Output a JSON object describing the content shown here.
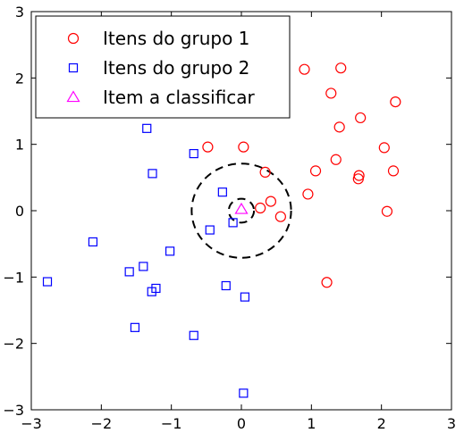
{
  "chart_data": {
    "type": "scatter",
    "title": "",
    "xlabel": "",
    "ylabel": "",
    "xlim": [
      -3,
      3
    ],
    "ylim": [
      -3,
      3
    ],
    "xticks": [
      -3,
      -2,
      -1,
      0,
      1,
      2,
      3
    ],
    "yticks": [
      -3,
      -2,
      -1,
      0,
      1,
      2,
      3
    ],
    "grid": false,
    "legend_position": "top-left",
    "series": [
      {
        "name": "Itens do grupo 1",
        "marker": "circle",
        "color": "#ff0000",
        "points": [
          [
            0.9,
            2.13
          ],
          [
            1.42,
            2.15
          ],
          [
            1.28,
            1.77
          ],
          [
            2.2,
            1.64
          ],
          [
            1.7,
            1.4
          ],
          [
            1.4,
            1.26
          ],
          [
            2.04,
            0.95
          ],
          [
            -0.48,
            0.96
          ],
          [
            0.03,
            0.96
          ],
          [
            1.35,
            0.77
          ],
          [
            0.34,
            0.58
          ],
          [
            1.06,
            0.6
          ],
          [
            2.17,
            0.6
          ],
          [
            1.68,
            0.53
          ],
          [
            1.67,
            0.48
          ],
          [
            0.95,
            0.25
          ],
          [
            0.42,
            0.14
          ],
          [
            0.27,
            0.04
          ],
          [
            0.56,
            -0.09
          ],
          [
            2.08,
            -0.01
          ],
          [
            1.22,
            -1.08
          ]
        ]
      },
      {
        "name": "Itens do grupo 2",
        "marker": "square",
        "color": "#0000ff",
        "points": [
          [
            -1.35,
            1.24
          ],
          [
            -1.27,
            0.56
          ],
          [
            -0.68,
            0.86
          ],
          [
            -0.27,
            0.28
          ],
          [
            -0.12,
            -0.18
          ],
          [
            -0.45,
            -0.29
          ],
          [
            -2.12,
            -0.47
          ],
          [
            -1.02,
            -0.61
          ],
          [
            -1.4,
            -0.84
          ],
          [
            -1.6,
            -0.92
          ],
          [
            -2.77,
            -1.07
          ],
          [
            -1.22,
            -1.17
          ],
          [
            -1.28,
            -1.22
          ],
          [
            -0.22,
            -1.13
          ],
          [
            0.05,
            -1.3
          ],
          [
            -1.52,
            -1.76
          ],
          [
            -0.68,
            -1.88
          ],
          [
            0.03,
            -2.75
          ]
        ]
      },
      {
        "name": "Item a classificar",
        "marker": "triangle",
        "color": "#ff00ff",
        "points": [
          [
            0.0,
            0.02
          ]
        ]
      }
    ],
    "circles": [
      {
        "cx": 0.0,
        "cy": 0.0,
        "r": 0.18,
        "style": "dashed",
        "color": "#000000"
      },
      {
        "cx": 0.0,
        "cy": 0.0,
        "r": 0.71,
        "style": "dashed",
        "color": "#000000"
      }
    ]
  }
}
